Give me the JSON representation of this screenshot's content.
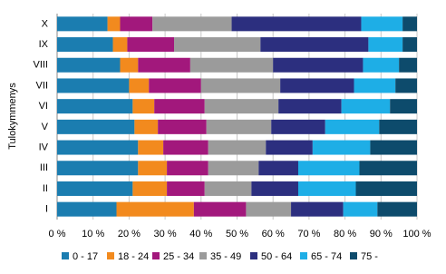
{
  "chart_data": {
    "type": "stacked-bar-horizontal",
    "y_label": "Tulokymmenys",
    "categories": [
      "X",
      "IX",
      "VIII",
      "VII",
      "VI",
      "V",
      "IV",
      "III",
      "II",
      "I"
    ],
    "series": [
      {
        "name": "0 - 17",
        "color": "#1b7db0",
        "values": [
          14,
          15.5,
          17.5,
          20,
          21,
          21.5,
          22.5,
          22.5,
          21,
          16.5
        ]
      },
      {
        "name": "18 - 24",
        "color": "#f28a1e",
        "values": [
          3.5,
          4,
          5,
          5.5,
          6,
          6.5,
          7,
          8,
          9.5,
          21.5
        ]
      },
      {
        "name": "25 - 34",
        "color": "#a2187c",
        "values": [
          9,
          13,
          14.5,
          14.5,
          14,
          13.5,
          12.5,
          11.5,
          10.5,
          14.5
        ]
      },
      {
        "name": "35 - 49",
        "color": "#9b9b9b",
        "values": [
          22,
          24,
          23,
          22,
          20.5,
          18,
          16,
          14,
          13,
          12.5
        ]
      },
      {
        "name": "50 - 64",
        "color": "#2c2f7f",
        "values": [
          36,
          30,
          25,
          20.5,
          17.5,
          15,
          13,
          11,
          13,
          14.5
        ]
      },
      {
        "name": "65 - 74",
        "color": "#1eaee6",
        "values": [
          11.5,
          9.5,
          10,
          11.5,
          13.5,
          15,
          16,
          17,
          16,
          9.5
        ]
      },
      {
        "name": "75 -",
        "color": "#0d4b6c",
        "values": [
          4,
          4,
          5,
          6,
          7.5,
          10.5,
          13,
          16,
          17,
          11
        ]
      }
    ],
    "xlim": [
      0,
      100
    ],
    "xticks": [
      {
        "value": 0,
        "label": "0 %"
      },
      {
        "value": 10,
        "label": "10 %"
      },
      {
        "value": 20,
        "label": "20 %"
      },
      {
        "value": 30,
        "label": "30 %"
      },
      {
        "value": 40,
        "label": "40 %"
      },
      {
        "value": 50,
        "label": "50 %"
      },
      {
        "value": 60,
        "label": "60 %"
      },
      {
        "value": 70,
        "label": "70 %"
      },
      {
        "value": 80,
        "label": "80 %"
      },
      {
        "value": 90,
        "label": "90 %"
      },
      {
        "value": 100,
        "label": "100 %"
      }
    ],
    "grid": true,
    "legend": "bottom"
  }
}
